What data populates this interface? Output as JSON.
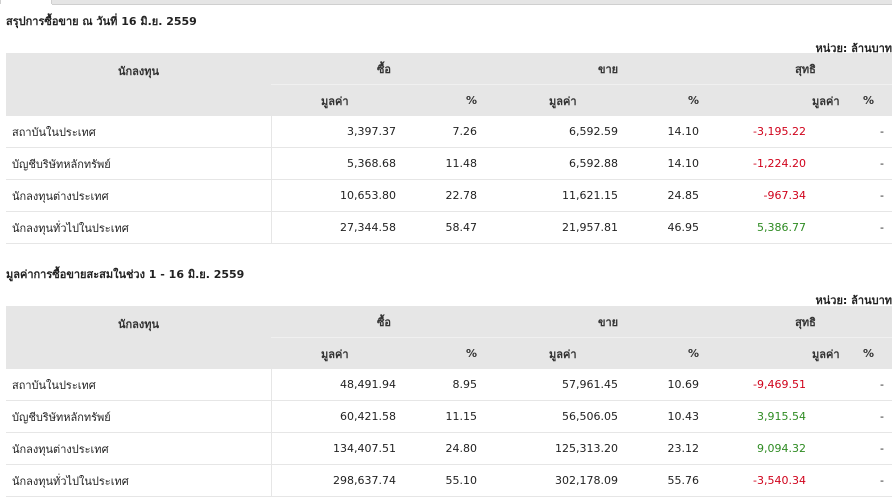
{
  "sections": [
    {
      "title": "สรุปการซื้อขาย ณ วันที่ 16 มิ.ย. 2559",
      "unit": "หน่วย: ล้านบาท",
      "headers": {
        "investor": "นักลงทุน",
        "buy": "ซื้อ",
        "sell": "ขาย",
        "net": "สุทธิ",
        "value": "มูลค่า",
        "percent": "%"
      },
      "rows": [
        {
          "name": "สถาบันในประเทศ",
          "buy_value": "3,397.37",
          "buy_pct": "7.26",
          "sell_value": "6,592.59",
          "sell_pct": "14.10",
          "net_value": "-3,195.22",
          "net_pct": "-",
          "net_sign": "neg"
        },
        {
          "name": "บัญชีบริษัทหลักทรัพย์",
          "buy_value": "5,368.68",
          "buy_pct": "11.48",
          "sell_value": "6,592.88",
          "sell_pct": "14.10",
          "net_value": "-1,224.20",
          "net_pct": "-",
          "net_sign": "neg"
        },
        {
          "name": "นักลงทุนต่างประเทศ",
          "buy_value": "10,653.80",
          "buy_pct": "22.78",
          "sell_value": "11,621.15",
          "sell_pct": "24.85",
          "net_value": "-967.34",
          "net_pct": "-",
          "net_sign": "neg"
        },
        {
          "name": "นักลงทุนทั่วไปในประเทศ",
          "buy_value": "27,344.58",
          "buy_pct": "58.47",
          "sell_value": "21,957.81",
          "sell_pct": "46.95",
          "net_value": "5,386.77",
          "net_pct": "-",
          "net_sign": "pos"
        }
      ]
    },
    {
      "title": "มูลค่าการซื้อขายสะสมในช่วง 1 - 16 มิ.ย. 2559",
      "unit": "หน่วย: ล้านบาท",
      "headers": {
        "investor": "นักลงทุน",
        "buy": "ซื้อ",
        "sell": "ขาย",
        "net": "สุทธิ",
        "value": "มูลค่า",
        "percent": "%"
      },
      "rows": [
        {
          "name": "สถาบันในประเทศ",
          "buy_value": "48,491.94",
          "buy_pct": "8.95",
          "sell_value": "57,961.45",
          "sell_pct": "10.69",
          "net_value": "-9,469.51",
          "net_pct": "-",
          "net_sign": "neg"
        },
        {
          "name": "บัญชีบริษัทหลักทรัพย์",
          "buy_value": "60,421.58",
          "buy_pct": "11.15",
          "sell_value": "56,506.05",
          "sell_pct": "10.43",
          "net_value": "3,915.54",
          "net_pct": "-",
          "net_sign": "pos"
        },
        {
          "name": "นักลงทุนต่างประเทศ",
          "buy_value": "134,407.51",
          "buy_pct": "24.80",
          "sell_value": "125,313.20",
          "sell_pct": "23.12",
          "net_value": "9,094.32",
          "net_pct": "-",
          "net_sign": "pos"
        },
        {
          "name": "นักลงทุนทั่วไปในประเทศ",
          "buy_value": "298,637.74",
          "buy_pct": "55.10",
          "sell_value": "302,178.09",
          "sell_pct": "55.76",
          "net_value": "-3,540.34",
          "net_pct": "-",
          "net_sign": "neg"
        }
      ]
    }
  ],
  "colors": {
    "header_bg": "#e6e6e6",
    "negative": "#d0021b",
    "positive": "#2e8b22"
  }
}
